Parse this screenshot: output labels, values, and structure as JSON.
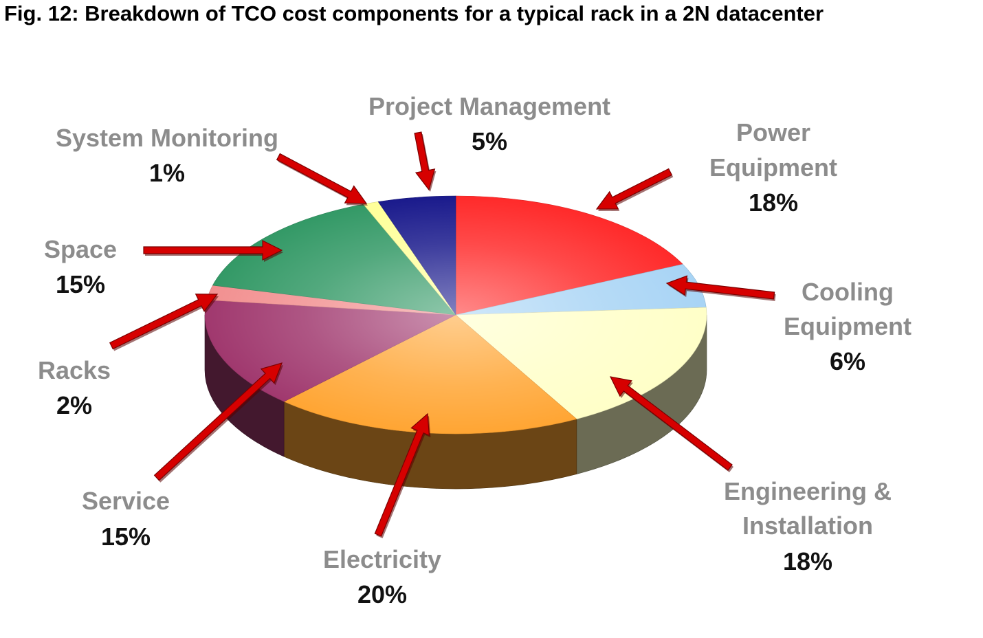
{
  "chart_data": {
    "type": "pie",
    "title": "Fig. 12: Breakdown of TCO cost components for a typical rack in a 2N datacenter",
    "slices": [
      {
        "name": "Power Equipment",
        "label_lines": [
          "Power",
          "Equipment"
        ],
        "value": 18,
        "value_label": "18%",
        "color": "#ff2a2a"
      },
      {
        "name": "Cooling Equipment",
        "label_lines": [
          "Cooling",
          "Equipment"
        ],
        "value": 6,
        "value_label": "6%",
        "color": "#a8d4f5"
      },
      {
        "name": "Engineering & Installation",
        "label_lines": [
          "Engineering &",
          "Installation"
        ],
        "value": 18,
        "value_label": "18%",
        "color": "#ffffc8"
      },
      {
        "name": "Electricity",
        "label_lines": [
          "Electricity"
        ],
        "value": 20,
        "value_label": "20%",
        "color": "#ffa533"
      },
      {
        "name": "Service",
        "label_lines": [
          "Service"
        ],
        "value": 15,
        "value_label": "15%",
        "color": "#a0386e"
      },
      {
        "name": "Racks",
        "label_lines": [
          "Racks"
        ],
        "value": 2,
        "value_label": "2%",
        "color": "#f29090"
      },
      {
        "name": "Space",
        "label_lines": [
          "Space"
        ],
        "value": 15,
        "value_label": "15%",
        "color": "#339966"
      },
      {
        "name": "System Monitoring",
        "label_lines": [
          "System Monitoring"
        ],
        "value": 1,
        "value_label": "1%",
        "color": "#ffff99"
      },
      {
        "name": "Project Management",
        "label_lines": [
          "Project  Management"
        ],
        "value": 5,
        "value_label": "5%",
        "color": "#1a1a8c"
      }
    ]
  }
}
